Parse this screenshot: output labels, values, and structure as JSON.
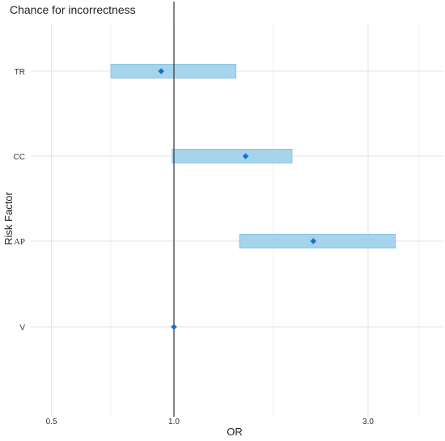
{
  "chart_data": {
    "type": "forest",
    "title": "Chance for incorrectness",
    "xlabel": "OR",
    "ylabel": "Risk Factor",
    "x_scale": "log",
    "xlim": [
      0.45,
      4.1
    ],
    "x_ticks": [
      {
        "value": 0.5,
        "label": "0.5"
      },
      {
        "value": 1.0,
        "label": "1.0"
      },
      {
        "value": 3.0,
        "label": "3.0"
      }
    ],
    "reference_line": 1.0,
    "grid": true,
    "colors": {
      "interval": "#a6d4ec",
      "interval_edge": "#8ac6e6",
      "point": "#1f6fc8",
      "reference": "#333333",
      "grid": "#e6e6e6"
    },
    "categories": [
      "TR",
      "CC",
      "AP",
      "V"
    ],
    "series": [
      {
        "values": [
          0.93,
          1.5,
          2.2,
          1.0
        ],
        "lower": [
          0.7,
          0.99,
          1.45,
          1.0
        ],
        "upper": [
          1.42,
          1.95,
          3.5,
          1.0
        ]
      }
    ]
  }
}
